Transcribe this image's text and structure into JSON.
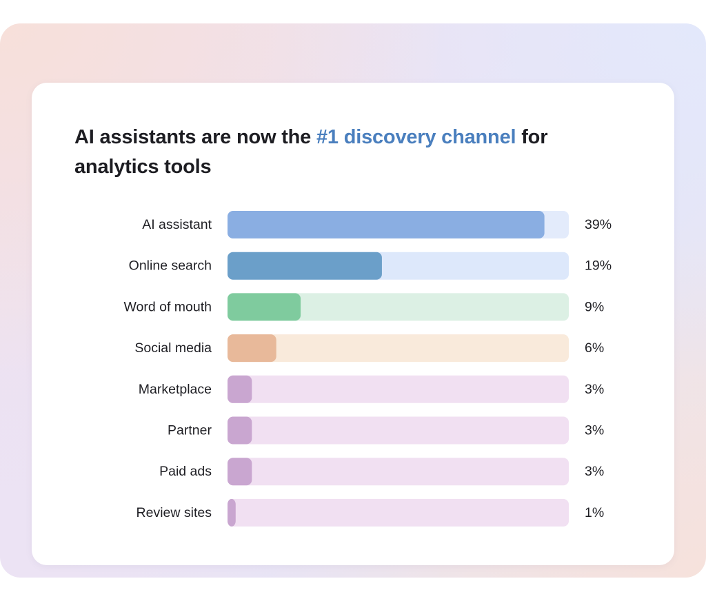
{
  "title": {
    "before": "AI assistants are now the ",
    "highlight": "#1 discovery channel",
    "after": " for analytics tools"
  },
  "colors": {
    "title_highlight": "#4a7fbe",
    "text": "#1f1f24"
  },
  "chart_data": {
    "type": "bar",
    "orientation": "horizontal",
    "categories": [
      "AI assistant",
      "Online search",
      "Word of mouth",
      "Social media",
      "Marketplace",
      "Partner",
      "Paid ads",
      "Review sites"
    ],
    "values": [
      39,
      19,
      9,
      6,
      3,
      3,
      3,
      1
    ],
    "value_labels": [
      "39%",
      "19%",
      "9%",
      "6%",
      "3%",
      "3%",
      "3%",
      "1%"
    ],
    "unit": "%",
    "xlim": [
      0,
      42
    ],
    "grid": false,
    "legend": "none",
    "bar_colors": [
      "#8aaee2",
      "#6b9fc9",
      "#7fcb9e",
      "#e8b99a",
      "#c9a6d0",
      "#c9a6d0",
      "#c9a6d0",
      "#c9a6d0"
    ],
    "track_colors": [
      "#e3ebfb",
      "#dde8fb",
      "#dcf0e4",
      "#f9eadb",
      "#f1e0f2",
      "#f1e0f2",
      "#f1e0f2",
      "#f1e0f2"
    ]
  }
}
